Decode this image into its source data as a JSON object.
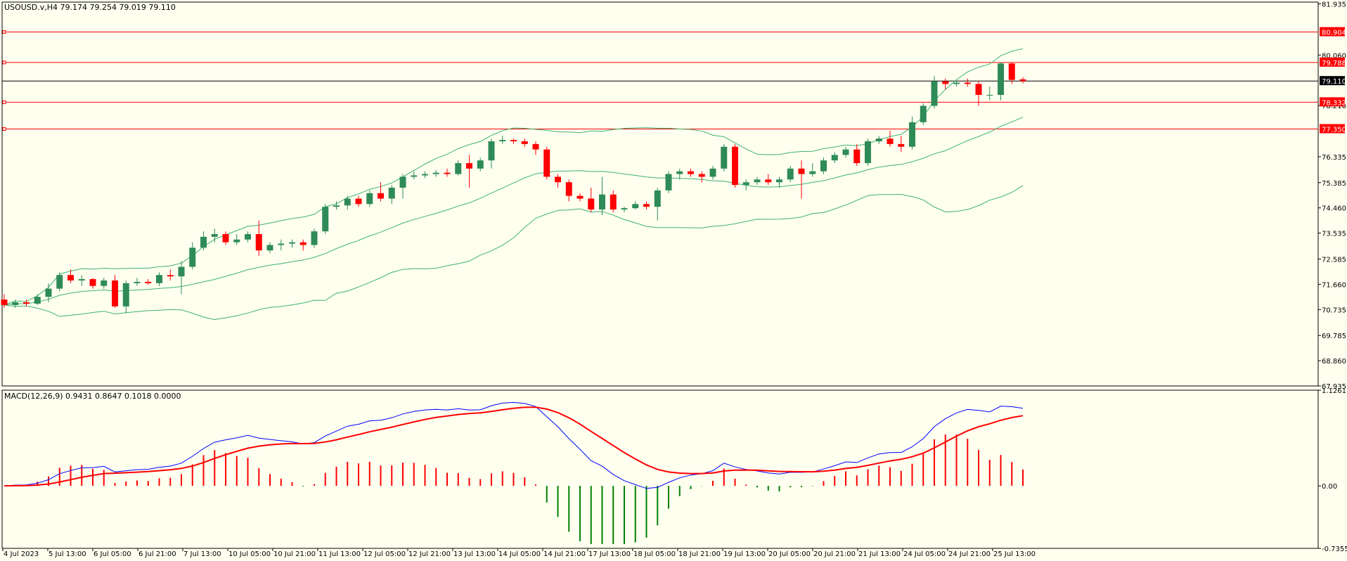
{
  "window": {
    "symbol_title": "USOUSD.v,H4  79.174 79.254 79.019 79.110"
  },
  "colors": {
    "background": "#fffff0",
    "bull": "#2e8b57",
    "bear": "#ff0000",
    "bands": "#3cb371",
    "level_line": "#ff0000",
    "current_line": "#000000",
    "macd_line": "#0000ff",
    "signal_line": "#ff0000",
    "hist_positive": "#ff0000",
    "hist_negative": "#008000"
  },
  "price_axis": {
    "labels": [
      "81.935",
      "80.060",
      "78.210",
      "76.335",
      "75.385",
      "74.460",
      "73.535",
      "72.585",
      "71.660",
      "70.735",
      "69.785",
      "68.860",
      "67.935"
    ],
    "ylim": [
      67.935,
      82.0
    ]
  },
  "time_axis": {
    "labels": [
      "4 Jul 2023",
      "5 Jul 13:00",
      "6 Jul 05:00",
      "6 Jul 21:00",
      "7 Jul 13:00",
      "10 Jul 05:00",
      "10 Jul 21:00",
      "11 Jul 13:00",
      "12 Jul 05:00",
      "12 Jul 21:00",
      "13 Jul 13:00",
      "14 Jul 05:00",
      "14 Jul 21:00",
      "17 Jul 13:00",
      "18 Jul 05:00",
      "18 Jul 21:00",
      "19 Jul 13:00",
      "20 Jul 05:00",
      "20 Jul 21:00",
      "21 Jul 13:00",
      "24 Jul 05:00",
      "24 Jul 21:00",
      "25 Jul 13:00"
    ]
  },
  "levels": [
    {
      "label": "80.904",
      "value": 80.904
    },
    {
      "label": "79.788",
      "value": 79.788
    },
    {
      "label": "78.332",
      "value": 78.332
    },
    {
      "label": "77.350",
      "value": 77.35
    }
  ],
  "current_price": {
    "label": "79.110",
    "value": 79.11
  },
  "macd_panel": {
    "title": "MACD(12,26,9) 0.9431 0.8647 0.1018 0.0000",
    "axis_labels": [
      "1.1261",
      "0.00",
      "-0.7355"
    ],
    "ylim": [
      -0.7355,
      1.1261
    ]
  },
  "chart_data": {
    "type": "candlestick",
    "symbol": "USOUSD.v",
    "timeframe": "H4",
    "candles": [
      [
        71.1,
        71.3,
        70.8,
        70.9
      ],
      [
        70.9,
        71.1,
        70.8,
        71.0
      ],
      [
        71.0,
        71.1,
        70.85,
        70.95
      ],
      [
        70.95,
        71.3,
        70.9,
        71.2
      ],
      [
        71.2,
        71.7,
        71.0,
        71.5
      ],
      [
        71.5,
        72.1,
        71.4,
        72.0
      ],
      [
        72.0,
        72.2,
        71.7,
        71.8
      ],
      [
        71.8,
        72.0,
        71.6,
        71.85
      ],
      [
        71.85,
        71.9,
        71.5,
        71.6
      ],
      [
        71.6,
        71.9,
        71.5,
        71.8
      ],
      [
        71.8,
        72.0,
        70.8,
        70.85
      ],
      [
        70.85,
        71.8,
        70.6,
        71.7
      ],
      [
        71.7,
        71.9,
        71.6,
        71.75
      ],
      [
        71.75,
        71.85,
        71.65,
        71.7
      ],
      [
        71.7,
        72.1,
        71.6,
        72.0
      ],
      [
        72.0,
        72.2,
        71.8,
        71.95
      ],
      [
        71.95,
        72.5,
        71.3,
        72.3
      ],
      [
        72.3,
        73.2,
        72.2,
        73.0
      ],
      [
        73.0,
        73.6,
        72.9,
        73.4
      ],
      [
        73.4,
        73.7,
        73.2,
        73.5
      ],
      [
        73.5,
        73.6,
        73.1,
        73.2
      ],
      [
        73.2,
        73.5,
        73.1,
        73.3
      ],
      [
        73.3,
        73.6,
        73.2,
        73.5
      ],
      [
        73.5,
        74.0,
        72.7,
        72.9
      ],
      [
        72.9,
        73.2,
        72.8,
        73.1
      ],
      [
        73.1,
        73.3,
        72.9,
        73.15
      ],
      [
        73.15,
        73.3,
        73.0,
        73.2
      ],
      [
        73.2,
        73.3,
        72.9,
        73.1
      ],
      [
        73.1,
        73.7,
        73.0,
        73.6
      ],
      [
        73.6,
        74.6,
        73.5,
        74.5
      ],
      [
        74.5,
        74.7,
        74.4,
        74.55
      ],
      [
        74.55,
        74.9,
        74.4,
        74.8
      ],
      [
        74.8,
        74.9,
        74.5,
        74.6
      ],
      [
        74.6,
        75.1,
        74.5,
        75.0
      ],
      [
        75.0,
        75.4,
        74.7,
        74.8
      ],
      [
        74.8,
        75.3,
        74.6,
        75.2
      ],
      [
        75.2,
        75.7,
        74.8,
        75.6
      ],
      [
        75.6,
        75.8,
        75.5,
        75.65
      ],
      [
        75.65,
        75.8,
        75.55,
        75.7
      ],
      [
        75.7,
        75.85,
        75.6,
        75.75
      ],
      [
        75.75,
        75.9,
        75.6,
        75.7
      ],
      [
        75.7,
        76.2,
        75.65,
        76.1
      ],
      [
        76.1,
        76.4,
        75.2,
        75.9
      ],
      [
        75.9,
        76.3,
        75.8,
        76.2
      ],
      [
        76.2,
        77.0,
        75.9,
        76.9
      ],
      [
        76.9,
        77.1,
        76.8,
        76.95
      ],
      [
        76.95,
        77.0,
        76.8,
        76.9
      ],
      [
        76.9,
        77.0,
        76.7,
        76.8
      ],
      [
        76.8,
        76.9,
        76.4,
        76.6
      ],
      [
        76.6,
        76.7,
        75.5,
        75.6
      ],
      [
        75.6,
        75.7,
        75.2,
        75.4
      ],
      [
        75.4,
        75.5,
        74.7,
        74.9
      ],
      [
        74.9,
        75.0,
        74.7,
        74.8
      ],
      [
        74.8,
        75.2,
        74.3,
        74.4
      ],
      [
        74.4,
        75.6,
        74.2,
        74.95
      ],
      [
        74.95,
        75.1,
        74.3,
        74.4
      ],
      [
        74.4,
        74.5,
        74.3,
        74.45
      ],
      [
        74.45,
        74.7,
        74.4,
        74.6
      ],
      [
        74.6,
        74.7,
        74.4,
        74.5
      ],
      [
        74.5,
        75.2,
        74.0,
        75.1
      ],
      [
        75.1,
        75.8,
        75.0,
        75.7
      ],
      [
        75.7,
        75.9,
        75.5,
        75.8
      ],
      [
        75.8,
        75.9,
        75.6,
        75.7
      ],
      [
        75.7,
        75.8,
        75.4,
        75.6
      ],
      [
        75.6,
        76.0,
        75.5,
        75.9
      ],
      [
        75.9,
        76.8,
        75.8,
        76.7
      ],
      [
        76.7,
        76.8,
        75.2,
        75.3
      ],
      [
        75.3,
        75.5,
        75.1,
        75.4
      ],
      [
        75.4,
        75.6,
        75.3,
        75.5
      ],
      [
        75.5,
        75.7,
        75.3,
        75.4
      ],
      [
        75.4,
        75.6,
        75.2,
        75.5
      ],
      [
        75.5,
        76.0,
        75.4,
        75.9
      ],
      [
        75.9,
        76.2,
        74.8,
        75.7
      ],
      [
        75.7,
        76.1,
        75.6,
        75.8
      ],
      [
        75.8,
        76.3,
        75.7,
        76.2
      ],
      [
        76.2,
        76.5,
        76.1,
        76.4
      ],
      [
        76.4,
        76.7,
        76.3,
        76.6
      ],
      [
        76.6,
        76.8,
        76.0,
        76.1
      ],
      [
        76.1,
        77.0,
        76.0,
        76.9
      ],
      [
        76.9,
        77.1,
        76.8,
        77.0
      ],
      [
        77.0,
        77.3,
        76.7,
        76.8
      ],
      [
        76.8,
        77.1,
        76.5,
        76.7
      ],
      [
        76.7,
        77.8,
        76.6,
        77.6
      ],
      [
        77.6,
        78.3,
        77.5,
        78.2
      ],
      [
        78.2,
        79.3,
        78.1,
        79.1
      ],
      [
        79.1,
        79.2,
        78.8,
        79.0
      ],
      [
        79.0,
        79.1,
        78.9,
        79.05
      ],
      [
        79.05,
        79.2,
        78.9,
        79.0
      ],
      [
        79.0,
        79.1,
        78.2,
        78.6
      ],
      [
        78.6,
        78.9,
        78.4,
        78.6
      ],
      [
        78.6,
        79.8,
        78.4,
        79.75
      ],
      [
        79.75,
        79.8,
        79.0,
        79.15
      ],
      [
        79.17,
        79.25,
        79.02,
        79.11
      ]
    ],
    "bollinger": {
      "period": 20,
      "deviation": 2
    },
    "macd": {
      "fast": 12,
      "slow": 26,
      "signal": 9,
      "main": 0.9431,
      "signal_value": 0.8647,
      "histogram": 0.1018
    }
  }
}
